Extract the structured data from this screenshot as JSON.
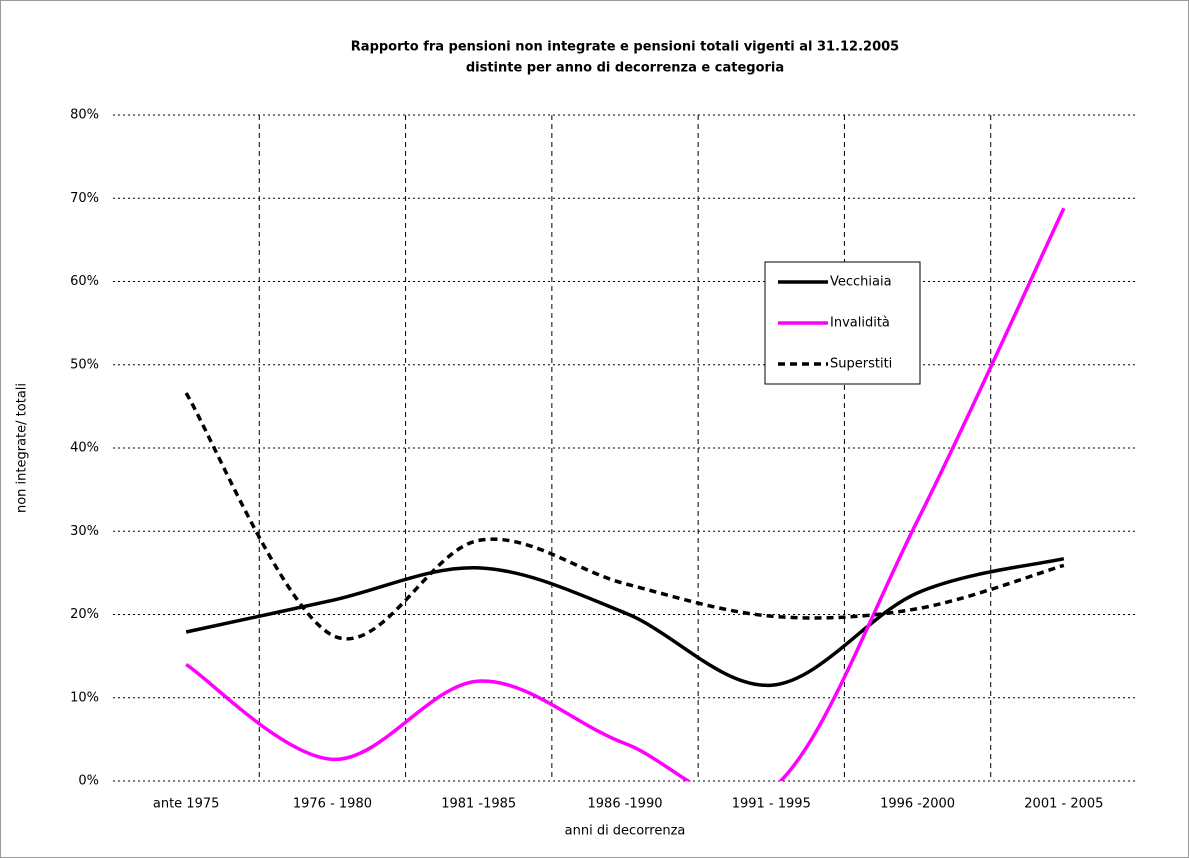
{
  "chart_data": {
    "type": "line",
    "title": "Rapporto fra pensioni non integrate e pensioni totali vigenti al 31.12.2005",
    "subtitle": "distinte per anno di decorrenza e categoria",
    "x_label": "anni di decorrenza",
    "y_label": "non integrate/ totali",
    "categories": [
      "ante 1975",
      "1976 - 1980",
      "1981 -1985",
      "1986 -1990",
      "1991 - 1995",
      "1996 -2000",
      "2001 - 2005"
    ],
    "series": [
      {
        "name": "Vecchiaia",
        "color": "#000000",
        "dash": false,
        "values": [
          17.9,
          21.7,
          25.6,
          20.2,
          11.5,
          22.6,
          26.7
        ]
      },
      {
        "name": "Invalidità",
        "color": "#ff00ff",
        "dash": false,
        "values": [
          14.0,
          2.6,
          12.0,
          4.5,
          -1.0,
          31.3,
          68.8
        ]
      },
      {
        "name": "Superstiti",
        "color": "#000000",
        "dash": true,
        "values": [
          46.6,
          17.5,
          28.9,
          23.7,
          19.8,
          20.7,
          25.9
        ]
      }
    ],
    "ylim": [
      0,
      80
    ],
    "yticks": [
      {
        "value": 0,
        "label": "0%"
      },
      {
        "value": 10,
        "label": "10%"
      },
      {
        "value": 20,
        "label": "20%"
      },
      {
        "value": 30,
        "label": "30%"
      },
      {
        "value": 40,
        "label": "40%"
      },
      {
        "value": 50,
        "label": "50%"
      },
      {
        "value": 60,
        "label": "60%"
      },
      {
        "value": 70,
        "label": "70%"
      },
      {
        "value": 80,
        "label": "80%"
      }
    ],
    "grid": true,
    "smooth": true
  }
}
